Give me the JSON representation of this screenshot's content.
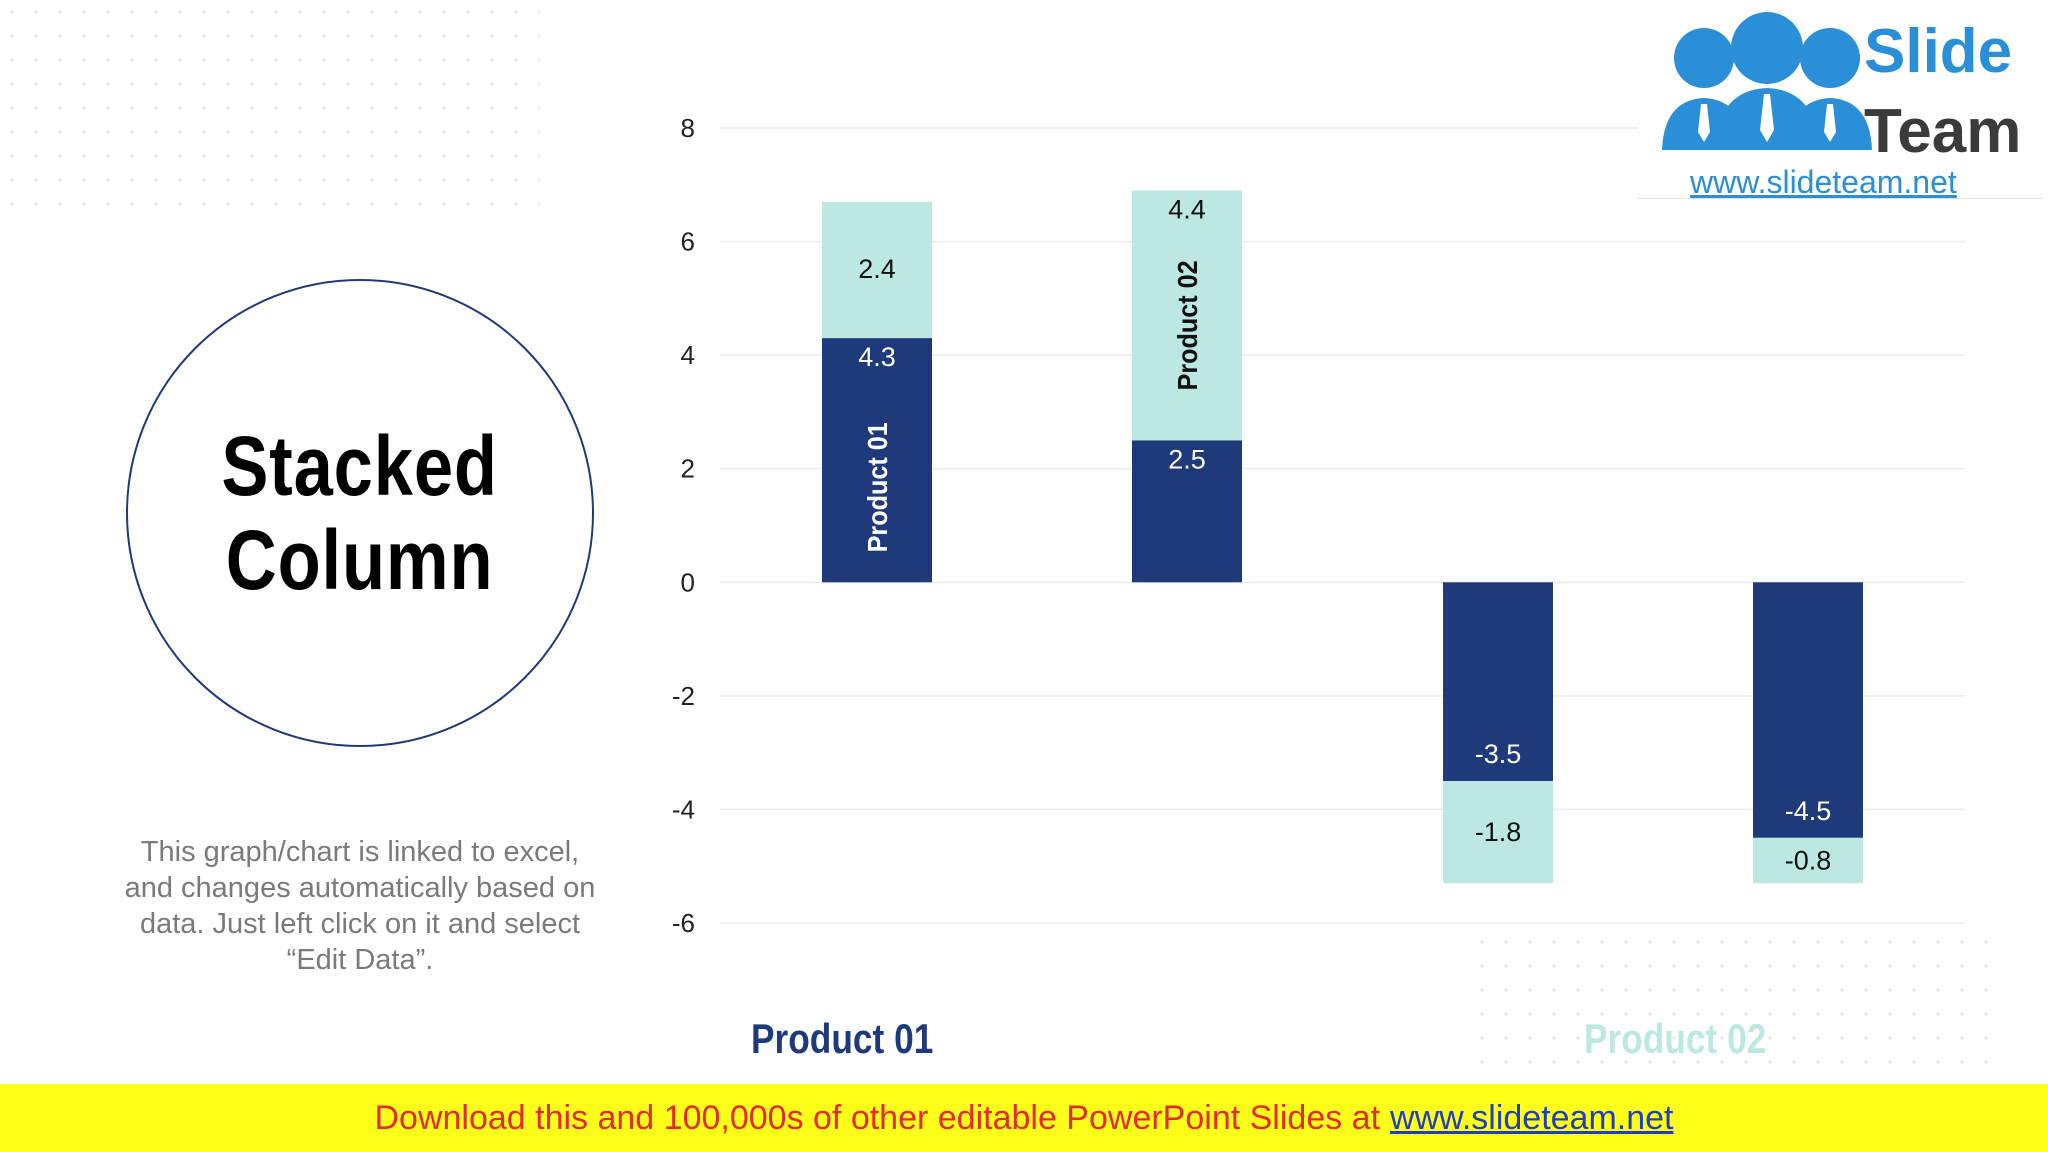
{
  "slide": {
    "title": "Stacked\nColumn",
    "description": "This graph/chart is linked to excel, and changes automatically based on data. Just left click on it and select “Edit Data”."
  },
  "logo": {
    "word1": "Slide",
    "word2": "Team",
    "url": "www.slideteam.net"
  },
  "banner": {
    "text": "Download this and 100,000s of other editable PowerPoint Slides at",
    "link": "www.slideteam.net"
  },
  "legend": {
    "product_01": "Product 01",
    "product_02": "Product 02"
  },
  "colors": {
    "product_01": "#1f3a7a",
    "product_02": "#bde8e2",
    "banner": "#ffff1a",
    "banner_text": "#e52a2a"
  },
  "chart_data": {
    "type": "bar",
    "stacked": true,
    "categories": [
      "",
      "",
      "",
      ""
    ],
    "series": [
      {
        "name": "Product 01",
        "values": [
          4.3,
          2.5,
          -3.5,
          -4.5
        ]
      },
      {
        "name": "Product 02",
        "values": [
          2.4,
          4.4,
          -1.8,
          -0.8
        ]
      }
    ],
    "data_labels": [
      [
        "4.3",
        "2.5",
        "-3.5",
        "-4.5"
      ],
      [
        "2.4",
        "4.4",
        "-1.8",
        "-0.8"
      ]
    ],
    "ylim": [
      -6,
      8
    ],
    "yticks": [
      "8",
      "6",
      "4",
      "2",
      "0",
      "-2",
      "-4",
      "-6"
    ],
    "ytick_values": [
      8,
      6,
      4,
      2,
      0,
      -2,
      -4,
      -6
    ],
    "grid": true,
    "legend_position": "bottom",
    "in_bar_labels": [
      {
        "series": 0,
        "category": 0,
        "text": "Product 01"
      },
      {
        "series": 1,
        "category": 1,
        "text": "Product 02"
      }
    ]
  }
}
